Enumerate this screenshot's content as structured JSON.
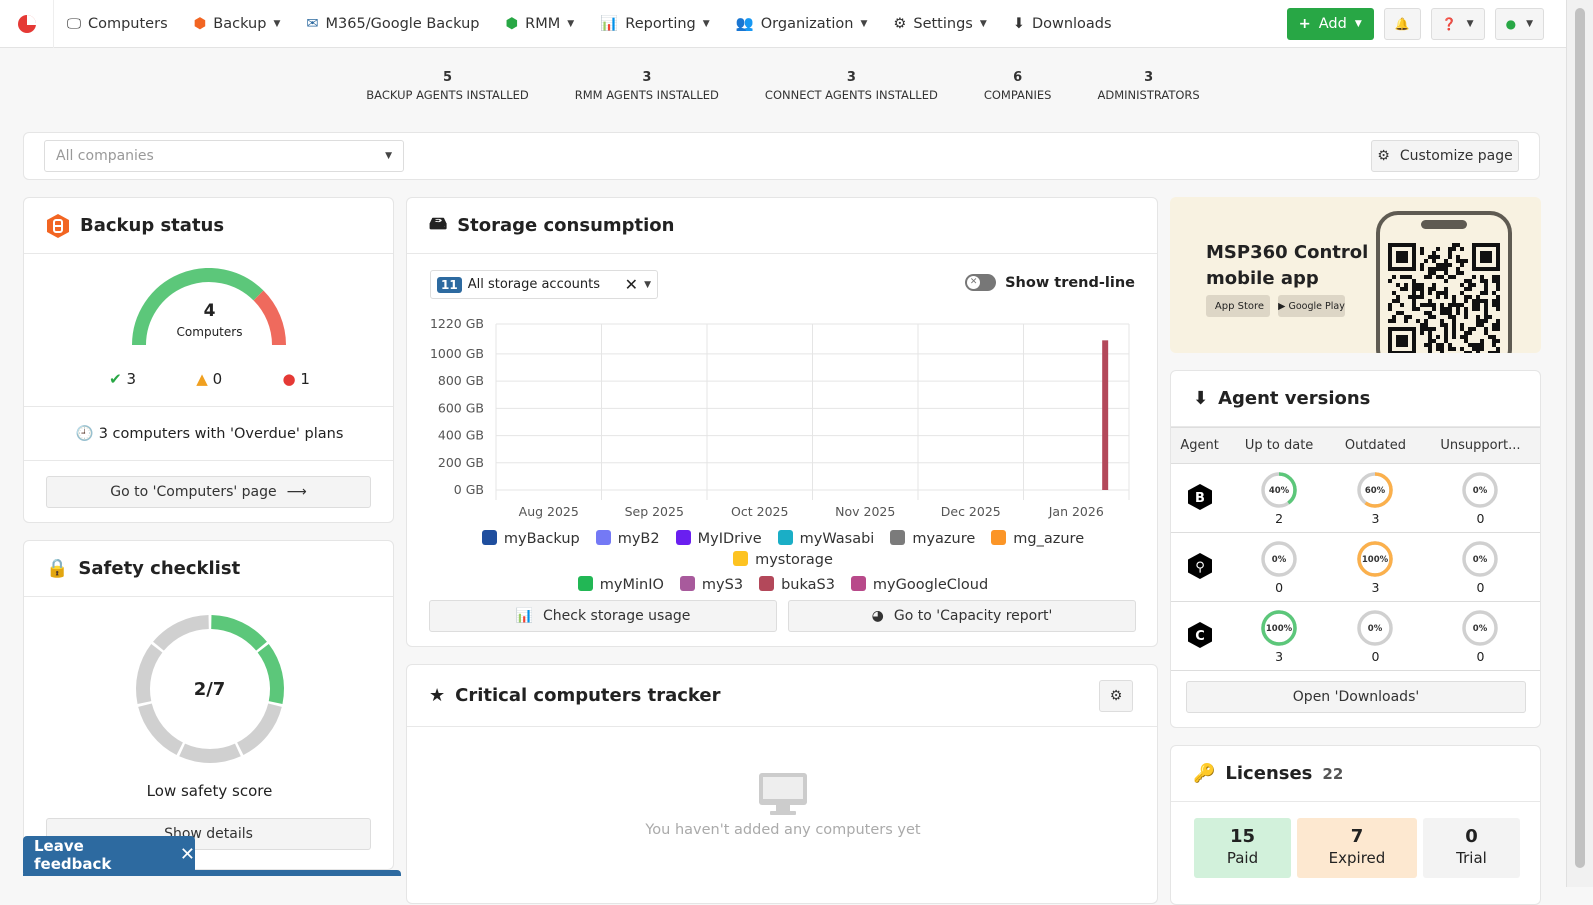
{
  "nav": {
    "items": [
      {
        "label": "Computers",
        "icon": "monitor-icon"
      },
      {
        "label": "Backup",
        "icon": "backup-icon",
        "dropdown": true
      },
      {
        "label": "M365/Google Backup",
        "icon": "envelope-icon"
      },
      {
        "label": "RMM",
        "icon": "rmm-icon",
        "dropdown": true
      },
      {
        "label": "Reporting",
        "icon": "bar-chart-icon",
        "dropdown": true
      },
      {
        "label": "Organization",
        "icon": "users-icon",
        "dropdown": true
      },
      {
        "label": "Settings",
        "icon": "gear-icon",
        "dropdown": true
      },
      {
        "label": "Downloads",
        "icon": "download-icon"
      }
    ],
    "add_label": "Add"
  },
  "stats": [
    {
      "value": "5",
      "label": "BACKUP AGENTS INSTALLED"
    },
    {
      "value": "3",
      "label": "RMM AGENTS INSTALLED"
    },
    {
      "value": "3",
      "label": "CONNECT AGENTS INSTALLED"
    },
    {
      "value": "6",
      "label": "COMPANIES"
    },
    {
      "value": "3",
      "label": "ADMINISTRATORS"
    }
  ],
  "filter": {
    "company_placeholder": "All companies",
    "customize_label": "Customize page"
  },
  "backup_status": {
    "title": "Backup status",
    "total": "4",
    "total_label": "Computers",
    "ok": "3",
    "warning": "0",
    "error": "1",
    "overdue_text": "3 computers with 'Overdue' plans",
    "button": "Go to 'Computers' page",
    "colors": {
      "ok": "#5cc77a",
      "error": "#ef6a5d"
    }
  },
  "safety": {
    "title": "Safety checklist",
    "score": "2/7",
    "passed": 2,
    "total": 7,
    "label": "Low safety score",
    "button": "Show details"
  },
  "storage": {
    "title": "Storage consumption",
    "accounts_count": "11",
    "accounts_label": "All storage accounts",
    "trend_label": "Show trend-line",
    "trend_on": false,
    "check_button": "Check storage usage",
    "capacity_button": "Go to 'Capacity report'"
  },
  "chart_data": {
    "type": "bar",
    "ylabel": "",
    "xlabel": "",
    "y_ticks": [
      "0 GB",
      "200 GB",
      "400 GB",
      "600 GB",
      "800 GB",
      "1000 GB",
      "1220 GB"
    ],
    "ylim": [
      0,
      1220
    ],
    "x_ticks": [
      "Aug 2025",
      "Sep 2025",
      "Oct 2025",
      "Nov 2025",
      "Dec 2025",
      "Jan 2026"
    ],
    "grid": true,
    "legend_placement": "bottom",
    "series": [
      {
        "name": "myBackup",
        "color": "#1f4e9e",
        "values": []
      },
      {
        "name": "myB2",
        "color": "#7479f5",
        "values": []
      },
      {
        "name": "MyIDrive",
        "color": "#6a1ff0",
        "values": []
      },
      {
        "name": "myWasabi",
        "color": "#1aaec6",
        "values": []
      },
      {
        "name": "myazure",
        "color": "#7b7b7b",
        "values": []
      },
      {
        "name": "mg_azure",
        "color": "#fb9527",
        "values": []
      },
      {
        "name": "mystorage",
        "color": "#fdc321",
        "values": []
      },
      {
        "name": "myMinIO",
        "color": "#22b755",
        "values": []
      },
      {
        "name": "myS3",
        "color": "#a85a9c",
        "values": []
      },
      {
        "name": "bukaS3",
        "color": "#b3485a",
        "values": [
          {
            "x": "2026-01-25",
            "y": 1100
          }
        ]
      },
      {
        "name": "myGoogleCloud",
        "color": "#b84a8a",
        "values": []
      }
    ]
  },
  "critical": {
    "title": "Critical computers tracker",
    "empty_text": "You haven't added any computers yet"
  },
  "mobile": {
    "title_line1": "MSP360 Control",
    "title_line2": "mobile app",
    "app_store": "App Store",
    "google_play": "Google Play"
  },
  "agents": {
    "title": "Agent versions",
    "headers": [
      "Agent",
      "Up to date",
      "Outdated",
      "Unsupport..."
    ],
    "rows": [
      {
        "agent": "backup",
        "cells": [
          {
            "pct": 40,
            "label": "40%",
            "count": "2",
            "color": "#5cc77a"
          },
          {
            "pct": 60,
            "label": "60%",
            "count": "3",
            "color": "#fbb04c"
          },
          {
            "pct": 0,
            "label": "0%",
            "count": "0",
            "color": "#ccc"
          }
        ]
      },
      {
        "agent": "rmm",
        "cells": [
          {
            "pct": 0,
            "label": "0%",
            "count": "0",
            "color": "#5cc77a"
          },
          {
            "pct": 100,
            "label": "100%",
            "count": "3",
            "color": "#fbb04c"
          },
          {
            "pct": 0,
            "label": "0%",
            "count": "0",
            "color": "#ccc"
          }
        ]
      },
      {
        "agent": "connect",
        "cells": [
          {
            "pct": 100,
            "label": "100%",
            "count": "3",
            "color": "#5cc77a"
          },
          {
            "pct": 0,
            "label": "0%",
            "count": "0",
            "color": "#fbb04c"
          },
          {
            "pct": 0,
            "label": "0%",
            "count": "0",
            "color": "#ccc"
          }
        ]
      }
    ],
    "button": "Open 'Downloads'"
  },
  "licenses": {
    "title": "Licenses",
    "total": "22",
    "paid": "15",
    "paid_label": "Paid",
    "expired": "7",
    "expired_label": "Expired",
    "trial": "0",
    "trial_label": "Trial"
  },
  "feedback": {
    "label": "Leave feedback"
  }
}
